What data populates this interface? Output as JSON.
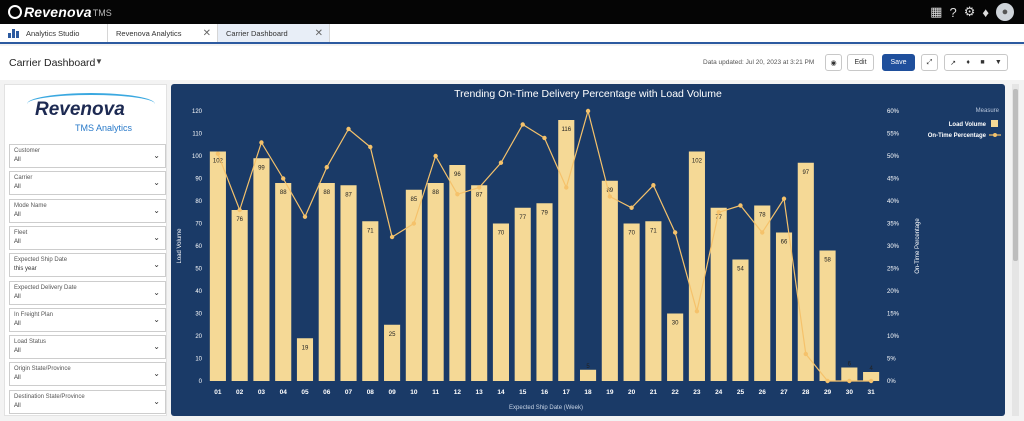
{
  "topbar": {
    "brand": "Revenova",
    "brand_suffix": "TMS"
  },
  "tabs": [
    {
      "label": "Analytics Studio"
    },
    {
      "label": "Revenova Analytics"
    },
    {
      "label": "Carrier Dashboard"
    }
  ],
  "header": {
    "title": "Carrier Dashboard",
    "updated": "Data updated: Jul 20, 2023 at 3:21 PM",
    "edit_label": "Edit",
    "save_label": "Save"
  },
  "sidebar": {
    "logo_name": "Revenova",
    "logo_sub": "TMS Analytics",
    "filters": [
      {
        "label": "Customer",
        "value": "All"
      },
      {
        "label": "Carrier",
        "value": "All"
      },
      {
        "label": "Mode Name",
        "value": "All"
      },
      {
        "label": "Fleet",
        "value": "All"
      },
      {
        "label": "Expected Ship Date",
        "value": "this year"
      },
      {
        "label": "Expected Delivery Date",
        "value": "All"
      },
      {
        "label": "In Freight Plan",
        "value": "All"
      },
      {
        "label": "Load Status",
        "value": "All"
      },
      {
        "label": "Origin State/Province",
        "value": "All"
      },
      {
        "label": "Destination State/Province",
        "value": "All"
      }
    ]
  },
  "chart_data": {
    "type": "bar",
    "title": "Trending On-Time Delivery Percentage with Load Volume",
    "xlabel": "Expected Ship Date (Week)",
    "ylabel": "Load Volume",
    "y2label": "On-Time Percentage",
    "legend_title": "Measure",
    "legend_position": "top-right",
    "categories": [
      "01",
      "02",
      "03",
      "04",
      "05",
      "06",
      "07",
      "08",
      "09",
      "10",
      "11",
      "12",
      "13",
      "14",
      "15",
      "16",
      "17",
      "18",
      "19",
      "20",
      "21",
      "22",
      "23",
      "24",
      "25",
      "26",
      "27",
      "28",
      "29",
      "30",
      "31"
    ],
    "ylim": [
      0,
      120
    ],
    "yticks": [
      0,
      10,
      20,
      30,
      40,
      50,
      60,
      70,
      80,
      90,
      100,
      110,
      120
    ],
    "y2lim": [
      0,
      60
    ],
    "y2ticks": [
      "0%",
      "5%",
      "10%",
      "15%",
      "20%",
      "25%",
      "30%",
      "35%",
      "40%",
      "45%",
      "50%",
      "55%",
      "60%"
    ],
    "bar_color": "#f5d996",
    "line_color": "#f5c26b",
    "series": [
      {
        "name": "Load Volume",
        "type": "bar",
        "values": [
          102,
          76,
          99,
          88,
          19,
          88,
          87,
          71,
          25,
          85,
          88,
          96,
          87,
          70,
          77,
          79,
          116,
          5,
          89,
          70,
          71,
          30,
          102,
          77,
          54,
          78,
          66,
          97,
          58,
          6,
          4
        ]
      },
      {
        "name": "On-Time Percentage",
        "type": "line",
        "values": [
          50.5,
          38,
          53,
          45,
          36.5,
          47.5,
          56,
          52,
          32,
          35,
          50,
          41.5,
          43,
          48.5,
          57,
          54,
          43,
          60,
          41,
          38.5,
          43.5,
          33,
          15.5,
          37.5,
          39,
          33,
          40.5,
          6,
          0,
          0,
          0
        ]
      }
    ]
  }
}
